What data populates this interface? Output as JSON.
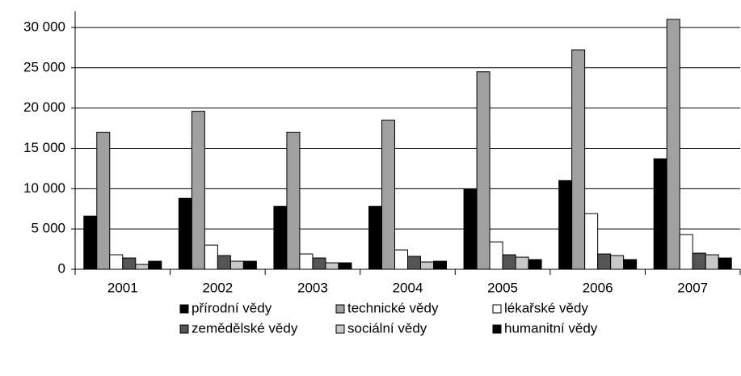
{
  "chart_data": {
    "type": "bar",
    "categories": [
      "2001",
      "2002",
      "2003",
      "2004",
      "2005",
      "2006",
      "2007"
    ],
    "series": [
      {
        "name": "přírodní vědy",
        "color": "#000000",
        "values": [
          6600,
          8800,
          7800,
          7800,
          9900,
          11000,
          13700
        ]
      },
      {
        "name": "technické vědy",
        "color": "#a0a0a0",
        "values": [
          17000,
          19600,
          17000,
          18500,
          24500,
          27200,
          31000
        ]
      },
      {
        "name": "lékařské vědy",
        "color": "#ffffff",
        "values": [
          1800,
          3000,
          1900,
          2400,
          3400,
          6900,
          4300
        ]
      },
      {
        "name": "zemědělské vědy",
        "color": "#555555",
        "values": [
          1400,
          1700,
          1400,
          1600,
          1800,
          1900,
          2000
        ]
      },
      {
        "name": "sociální vědy",
        "color": "#c8c8c8",
        "values": [
          600,
          1000,
          800,
          900,
          1500,
          1700,
          1800
        ]
      },
      {
        "name": "humanitní vědy",
        "color": "#000000",
        "values": [
          1000,
          1000,
          800,
          1000,
          1200,
          1200,
          1400
        ]
      }
    ],
    "ylim": [
      0,
      32000
    ],
    "yticks": [
      {
        "value": 0,
        "label": "0"
      },
      {
        "value": 5000,
        "label": "5 000"
      },
      {
        "value": 10000,
        "label": "10 000"
      },
      {
        "value": 15000,
        "label": "15 000"
      },
      {
        "value": 20000,
        "label": "20 000"
      },
      {
        "value": 25000,
        "label": "25 000"
      },
      {
        "value": 30000,
        "label": "30 000"
      }
    ],
    "grid": true
  }
}
